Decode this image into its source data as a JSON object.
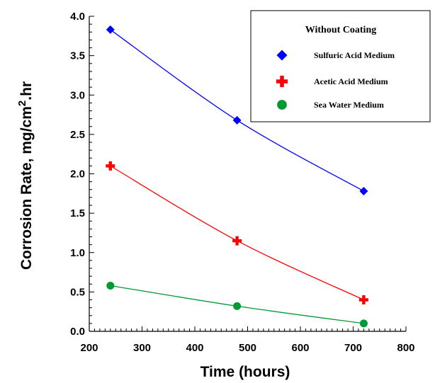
{
  "chart_data": {
    "type": "line",
    "xlabel": "Time (hours)",
    "ylabel_main": "Corrosion Rate, mg/cm",
    "ylabel_sup": "2",
    "ylabel_tail": ".hr",
    "xlim": [
      200,
      800
    ],
    "ylim": [
      0.0,
      4.0
    ],
    "x_ticks": [
      "200",
      "300",
      "400",
      "500",
      "600",
      "700",
      "800"
    ],
    "y_ticks": [
      "0.0",
      "0.5",
      "1.0",
      "1.5",
      "2.0",
      "2.5",
      "3.0",
      "3.5",
      "4.0"
    ],
    "grid": false,
    "legend_placement": "top-right",
    "legend_title": "Without Coating",
    "series": [
      {
        "name": "Sulfuric Acid Medium",
        "marker": "diamond",
        "color": "#0000ff",
        "x": [
          240,
          480,
          720
        ],
        "y": [
          3.83,
          2.68,
          1.78
        ]
      },
      {
        "name": "Acetic Acid Medium",
        "marker": "cross",
        "color": "#ff0000",
        "x": [
          240,
          480,
          720
        ],
        "y": [
          2.1,
          1.15,
          0.4
        ]
      },
      {
        "name": "Sea Water Medium",
        "marker": "circle",
        "color": "#009933",
        "x": [
          240,
          480,
          720
        ],
        "y": [
          0.58,
          0.32,
          0.1
        ]
      }
    ]
  }
}
